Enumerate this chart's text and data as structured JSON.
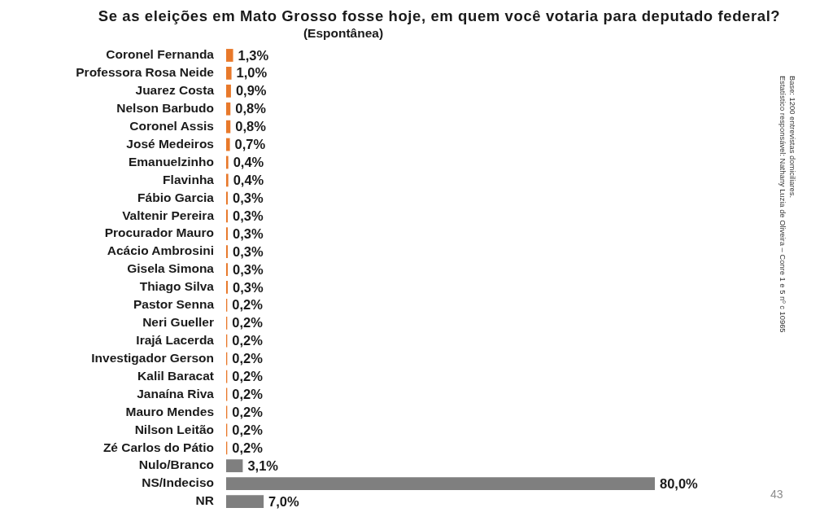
{
  "chart_data": {
    "type": "bar",
    "orientation": "horizontal",
    "title": "Se as eleições em Mato Grosso fosse hoje, em quem você votaria para deputado federal?",
    "subtitle": "(Espontânea)",
    "categories": [
      "Coronel Fernanda",
      "Professora Rosa Neide",
      "Juarez Costa",
      "Nelson Barbudo",
      "Coronel Assis",
      "José Medeiros",
      "Emanuelzinho",
      "Flavinha",
      "Fábio Garcia",
      "Valtenir Pereira",
      "Procurador Mauro",
      "Acácio Ambrosini",
      "Gisela Simona",
      "Thiago Silva",
      "Pastor Senna",
      "Neri Gueller",
      "Irajá Lacerda",
      "Investigador Gerson",
      "Kalil Baracat",
      "Janaína Riva",
      "Mauro Mendes",
      "Nilson Leitão",
      "Zé Carlos do Pátio",
      "Nulo/Branco",
      "NS/Indeciso",
      "NR"
    ],
    "values": [
      1.3,
      1.0,
      0.9,
      0.8,
      0.8,
      0.7,
      0.4,
      0.4,
      0.3,
      0.3,
      0.3,
      0.3,
      0.3,
      0.3,
      0.2,
      0.2,
      0.2,
      0.2,
      0.2,
      0.2,
      0.2,
      0.2,
      0.2,
      3.1,
      80.0,
      7.0
    ],
    "colors": [
      "#e8792b",
      "#e8792b",
      "#e8792b",
      "#e8792b",
      "#e8792b",
      "#e8792b",
      "#e8792b",
      "#e8792b",
      "#e8792b",
      "#e8792b",
      "#e8792b",
      "#e8792b",
      "#e8792b",
      "#e8792b",
      "#e8792b",
      "#e8792b",
      "#e8792b",
      "#e8792b",
      "#e8792b",
      "#e8792b",
      "#e8792b",
      "#e8792b",
      "#e8792b",
      "#7f7f7f",
      "#7f7f7f",
      "#7f7f7f"
    ],
    "value_labels": [
      "1,3%",
      "1,0%",
      "0,9%",
      "0,8%",
      "0,8%",
      "0,7%",
      "0,4%",
      "0,4%",
      "0,3%",
      "0,3%",
      "0,3%",
      "0,3%",
      "0,3%",
      "0,3%",
      "0,2%",
      "0,2%",
      "0,2%",
      "0,2%",
      "0,2%",
      "0,2%",
      "0,2%",
      "0,2%",
      "0,2%",
      "3,1%",
      "80,0%",
      "7,0%"
    ],
    "tick_labels": "y",
    "annotations": [
      "Base: 1200 entrevistas domiciliares.",
      "Estatístico responsável: Nathany Luzia de Oliveira – Conre 1 e 5 nº c 10965",
      "43"
    ]
  }
}
